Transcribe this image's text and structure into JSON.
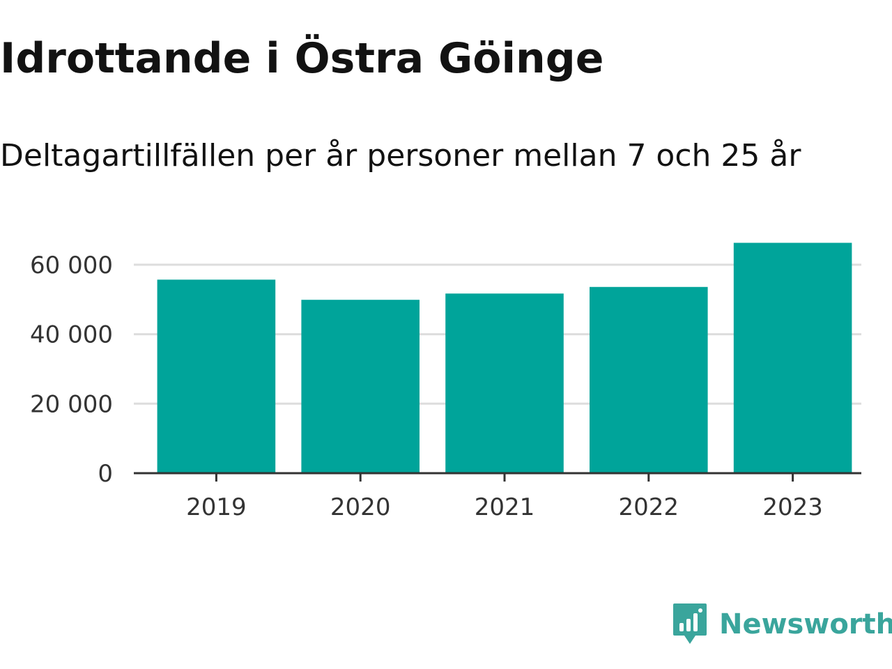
{
  "title": "Idrottande i Östra Göinge",
  "subtitle": "Deltagartillfällen per år personer mellan 7 och 25 år",
  "brand": {
    "name": "Newsworthy",
    "color": "#3aa59c",
    "icon": "newsworthy-logo-icon"
  },
  "chart_data": {
    "type": "bar",
    "title": "Idrottande i Östra Göinge",
    "subtitle": "Deltagartillfällen per år personer mellan 7 och 25 år",
    "categories": [
      "2019",
      "2020",
      "2021",
      "2022",
      "2023"
    ],
    "values": [
      55700,
      49900,
      51700,
      53600,
      66300
    ],
    "ylim": [
      0,
      70000
    ],
    "yticks": [
      0,
      20000,
      40000,
      60000
    ],
    "ytick_labels": [
      "0",
      "20 000",
      "40 000",
      "60 000"
    ],
    "xlabel": "",
    "ylabel": "",
    "grid": true,
    "bar_color": "#00a49a",
    "grid_color": "#dddddd",
    "axis_color": "#333333"
  }
}
